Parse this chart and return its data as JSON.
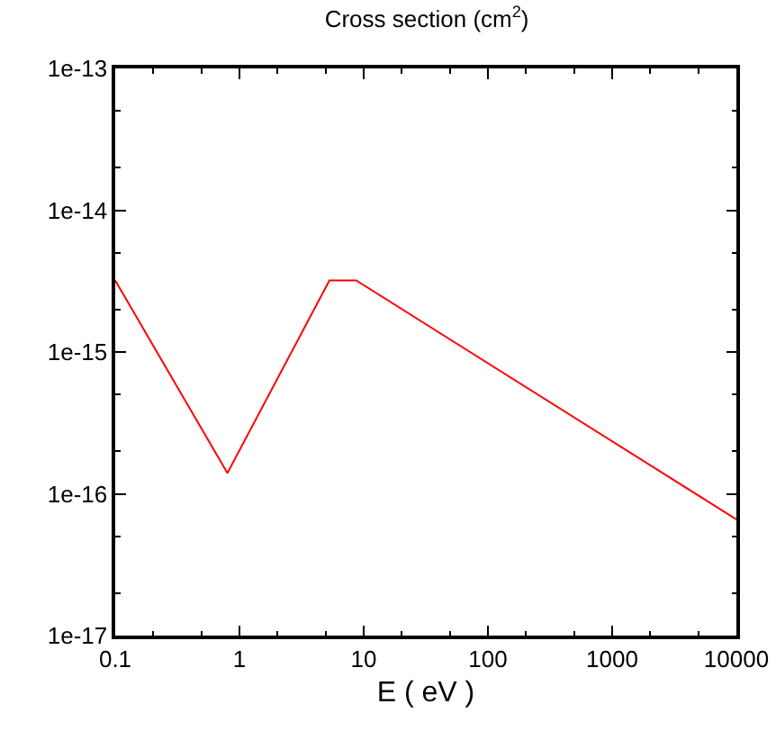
{
  "chart_data": {
    "type": "line",
    "title": "Cross section (cm$^{2}$)",
    "xlabel": "E ( eV )",
    "log": "xy",
    "x": [
      0.1,
      0.8,
      5.3,
      8.7,
      10000
    ],
    "series": [
      {
        "color": "#ff0000",
        "values": [
          3.2e-15,
          1.4e-16,
          3.2e-15,
          3.2e-15,
          6.6e-17
        ]
      }
    ],
    "xlim": [
      0.1,
      10000
    ],
    "xticks": [
      0.1,
      1,
      10,
      100,
      1000,
      10000
    ],
    "ylim": [
      1e-17,
      1e-13
    ],
    "yticks": [
      {
        "value": 1e-17,
        "label": "1e-17"
      },
      {
        "value": 1e-16,
        "label": "1e-16"
      },
      {
        "value": 1e-15,
        "label": "1e-15"
      },
      {
        "value": 1e-14,
        "label": "1e-14"
      },
      {
        "value": 1e-13,
        "label": "1e-13"
      }
    ],
    "grid": false
  }
}
